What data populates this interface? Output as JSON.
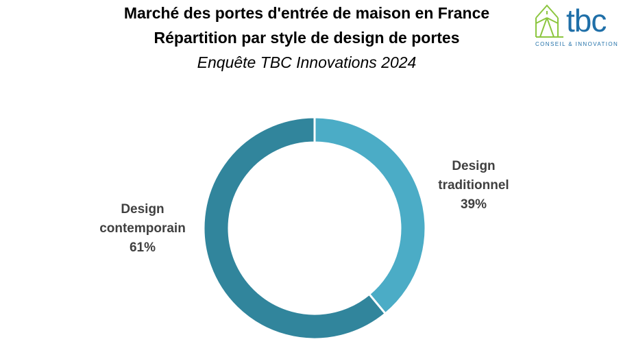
{
  "header": {
    "title_line1": "Marché des portes d'entrée de maison en France",
    "title_line2": "Répartition par style de design de portes",
    "subtitle": "Enquête TBC Innovations 2024"
  },
  "logo": {
    "name": "tbc",
    "tagline": "CONSEIL & INNOVATION",
    "house_color": "#8CC63F",
    "text_color": "#1F6FA8"
  },
  "labels": {
    "traditionnel": {
      "name": "Design traditionnel",
      "line1": "Design",
      "line2": "traditionnel",
      "pct": "39%"
    },
    "contemporain": {
      "name": "Design contemporain",
      "line1": "Design",
      "line2": "contemporain",
      "pct": "61%"
    }
  },
  "chart_data": {
    "type": "pie",
    "variant": "donut",
    "title": "Marché des portes d'entrée de maison en France — Répartition par style de design de portes",
    "subtitle": "Enquête TBC Innovations 2024",
    "categories": [
      "Design traditionnel",
      "Design contemporain"
    ],
    "values": [
      39,
      61
    ],
    "unit": "%",
    "colors": [
      "#4BACC6",
      "#31859C"
    ],
    "start_angle_deg": 0,
    "direction": "clockwise",
    "legend": "none (data labels beside segments)"
  }
}
